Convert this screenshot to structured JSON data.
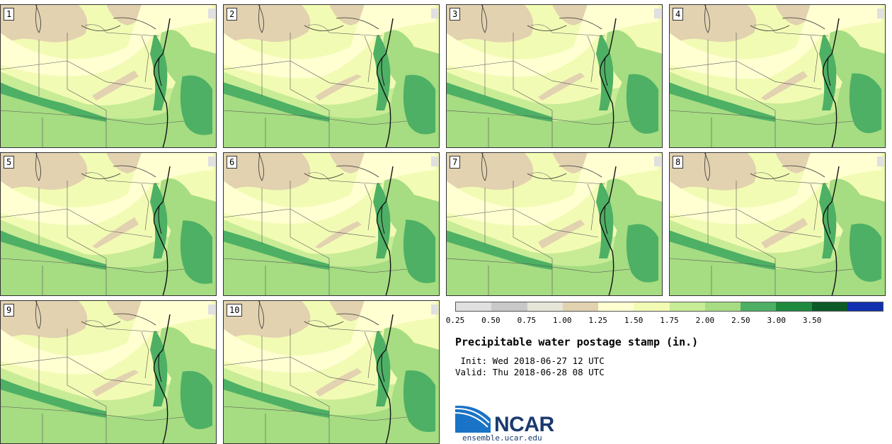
{
  "panels": [
    {
      "label": "1"
    },
    {
      "label": "2"
    },
    {
      "label": "3"
    },
    {
      "label": "4"
    },
    {
      "label": "5"
    },
    {
      "label": "6"
    },
    {
      "label": "7"
    },
    {
      "label": "8"
    },
    {
      "label": "9"
    },
    {
      "label": "10"
    }
  ],
  "colorbar": {
    "ticks": [
      "0.25",
      "0.50",
      "0.75",
      "1.00",
      "1.25",
      "1.50",
      "1.75",
      "2.00",
      "2.50",
      "3.00",
      "3.50"
    ],
    "colors": [
      "#e0e0e0",
      "#c8c8c8",
      "#e6e6d8",
      "#e2d2b0",
      "#ffffd2",
      "#f2fbb4",
      "#c8ec96",
      "#a6dc82",
      "#4eb064",
      "#1e8a3e",
      "#0c5a28",
      "#1030b0"
    ]
  },
  "info": {
    "title": "Precipitable water postage stamp (in.)",
    "init": " Init: Wed 2018-06-27 12 UTC",
    "valid": "Valid: Thu 2018-06-28 08 UTC"
  },
  "logo": {
    "name": "NCAR",
    "url": "ensemble.ucar.edu"
  }
}
